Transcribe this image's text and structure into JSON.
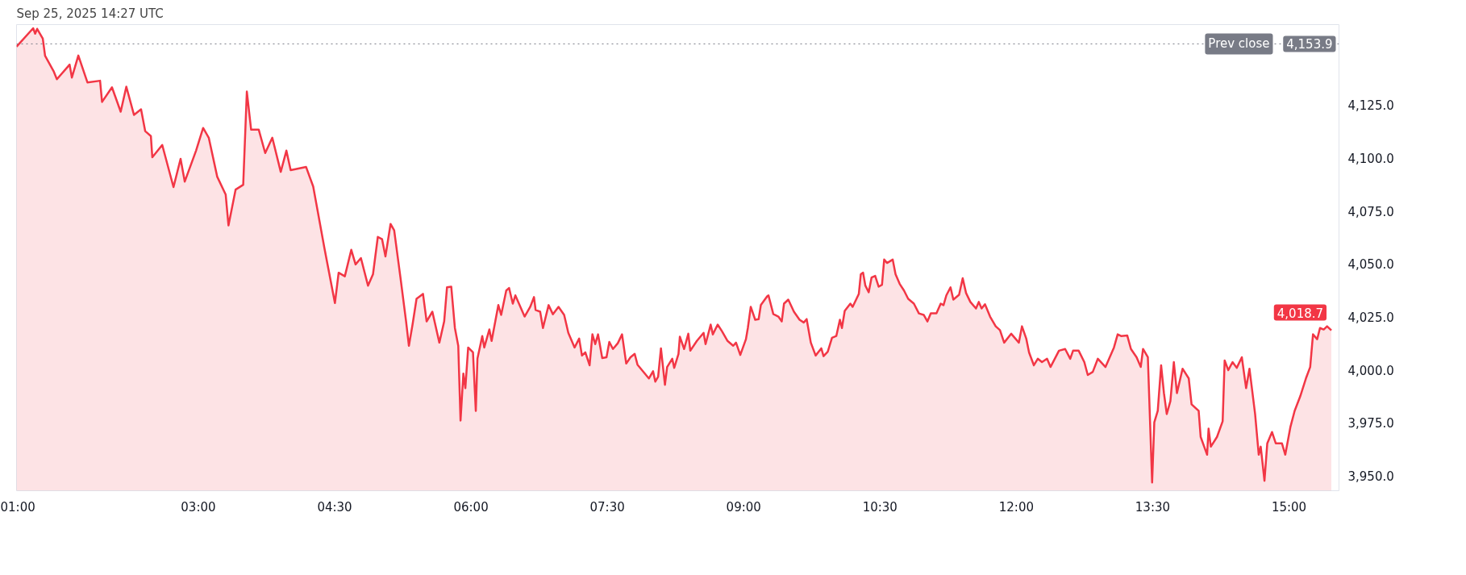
{
  "chart_data": {
    "type": "area",
    "title": "Sep 25, 2025 14:27 UTC",
    "x": [
      1.0,
      1.183,
      1.205,
      1.227,
      1.289,
      1.314,
      1.407,
      1.444,
      1.584,
      1.609,
      1.68,
      1.78,
      1.919,
      1.941,
      2.05,
      2.146,
      2.208,
      2.292,
      2.37,
      2.416,
      2.478,
      2.494,
      2.603,
      2.727,
      2.805,
      2.851,
      2.975,
      3.053,
      3.115,
      3.208,
      3.301,
      3.332,
      3.41,
      3.494,
      3.534,
      3.581,
      3.665,
      3.736,
      3.814,
      3.907,
      3.969,
      4.016,
      4.186,
      4.264,
      4.388,
      4.503,
      4.544,
      4.612,
      4.683,
      4.73,
      4.789,
      4.867,
      4.922,
      4.975,
      5.022,
      5.059,
      5.115,
      5.155,
      5.224,
      5.286,
      5.317,
      5.357,
      5.401,
      5.472,
      5.512,
      5.575,
      5.652,
      5.705,
      5.736,
      5.783,
      5.823,
      5.86,
      5.885,
      5.916,
      5.938,
      5.969,
      6.022,
      6.053,
      6.071,
      6.124,
      6.146,
      6.202,
      6.227,
      6.301,
      6.332,
      6.388,
      6.419,
      6.46,
      6.488,
      6.59,
      6.652,
      6.693,
      6.711,
      6.761,
      6.792,
      6.854,
      6.901,
      6.963,
      7.025,
      7.071,
      7.14,
      7.19,
      7.221,
      7.258,
      7.305,
      7.336,
      7.367,
      7.398,
      7.444,
      7.491,
      7.522,
      7.562,
      7.615,
      7.662,
      7.708,
      7.755,
      7.801,
      7.832,
      7.957,
      8.003,
      8.028,
      8.059,
      8.09,
      8.134,
      8.158,
      8.214,
      8.236,
      8.283,
      8.298,
      8.345,
      8.391,
      8.413,
      8.485,
      8.559,
      8.581,
      8.637,
      8.661,
      8.714,
      8.761,
      8.823,
      8.885,
      8.916,
      8.963,
      9.025,
      9.046,
      9.078,
      9.127,
      9.165,
      9.189,
      9.258,
      9.273,
      9.326,
      9.382,
      9.419,
      9.444,
      9.491,
      9.553,
      9.615,
      9.661,
      9.693,
      9.739,
      9.792,
      9.854,
      9.879,
      9.925,
      9.972,
      10.019,
      10.059,
      10.081,
      10.112,
      10.174,
      10.199,
      10.267,
      10.289,
      10.314,
      10.339,
      10.376,
      10.407,
      10.447,
      10.485,
      10.522,
      10.546,
      10.578,
      10.64,
      10.671,
      10.717,
      10.764,
      10.81,
      10.873,
      10.928,
      10.981,
      11.022,
      11.059,
      11.121,
      11.168,
      11.199,
      11.23,
      11.276,
      11.307,
      11.37,
      11.41,
      11.447,
      11.494,
      11.556,
      11.587,
      11.618,
      11.655,
      11.711,
      11.773,
      11.82,
      11.866,
      11.944,
      12.028,
      12.062,
      12.109,
      12.14,
      12.193,
      12.236,
      12.282,
      12.338,
      12.376,
      12.469,
      12.537,
      12.593,
      12.624,
      12.686,
      12.748,
      12.786,
      12.841,
      12.897,
      12.981,
      13.074,
      13.115,
      13.152,
      13.22,
      13.261,
      13.323,
      13.369,
      13.394,
      13.447,
      13.494,
      13.518,
      13.556,
      13.593,
      13.624,
      13.655,
      13.695,
      13.733,
      13.767,
      13.829,
      13.897,
      13.928,
      14.006,
      14.028,
      14.099,
      14.115,
      14.14,
      14.208,
      14.27,
      14.292,
      14.332,
      14.379,
      14.425,
      14.481,
      14.528,
      14.565,
      14.627,
      14.667,
      14.689,
      14.73,
      14.761,
      14.813,
      14.854,
      14.922,
      14.959,
      15.015,
      15.062,
      15.124,
      15.186,
      15.233,
      15.264,
      15.31,
      15.341,
      15.382,
      15.419,
      15.466
    ],
    "series": [
      {
        "color": "#f23645",
        "values": [
          4152.6,
          4161.3,
          4158.7,
          4161.0,
          4156.4,
          4148.3,
          4141.1,
          4137.2,
          4144.1,
          4138.0,
          4148.4,
          4135.7,
          4136.5,
          4126.5,
          4133.4,
          4121.9,
          4133.7,
          4120.4,
          4123.0,
          4112.7,
          4110.4,
          4100.4,
          4106.2,
          4086.3,
          4099.6,
          4088.9,
          4103.5,
          4114.2,
          4109.6,
          4091.2,
          4082.8,
          4068.2,
          4085.1,
          4087.4,
          4131.4,
          4113.4,
          4113.4,
          4102.4,
          4109.6,
          4093.5,
          4103.5,
          4094.3,
          4095.8,
          4086.6,
          4057.4,
          4031.6,
          4045.9,
          4044.2,
          4056.7,
          4049.8,
          4052.8,
          4039.8,
          4045.2,
          4062.8,
          4061.7,
          4053.6,
          4068.9,
          4065.9,
          4043.6,
          4022.9,
          4011.4,
          4021.4,
          4033.6,
          4035.9,
          4022.9,
          4027.5,
          4012.9,
          4022.9,
          4039.0,
          4039.3,
          4019.8,
          4011.4,
          3976.1,
          3998.3,
          3991.4,
          4010.6,
          4008.3,
          3980.7,
          4005.3,
          4016.0,
          4010.6,
          4019.1,
          4013.7,
          4030.6,
          4026.0,
          4037.5,
          4038.7,
          4031.3,
          4035.2,
          4025.2,
          4029.8,
          4034.4,
          4028.3,
          4027.5,
          4019.8,
          4030.6,
          4026.3,
          4029.8,
          4026.0,
          4017.5,
          4010.6,
          4014.8,
          4006.8,
          4008.3,
          4002.2,
          4016.8,
          4012.2,
          4016.8,
          4005.6,
          4006.0,
          4013.2,
          4009.9,
          4012.6,
          4016.8,
          4003.0,
          4006.0,
          4007.6,
          4002.5,
          3996.0,
          3999.4,
          3994.5,
          3996.8,
          4010.2,
          3993.0,
          4001.4,
          4005.3,
          4001.0,
          4007.6,
          4015.7,
          4009.9,
          4017.1,
          4009.1,
          4013.7,
          4017.5,
          4012.2,
          4021.4,
          4016.8,
          4021.4,
          4018.3,
          4013.7,
          4011.4,
          4012.9,
          4007.1,
          4014.5,
          4019.8,
          4029.8,
          4023.7,
          4024.0,
          4030.6,
          4034.7,
          4035.2,
          4026.4,
          4025.2,
          4022.9,
          4031.3,
          4033.2,
          4027.5,
          4023.7,
          4022.4,
          4024.0,
          4012.9,
          4006.8,
          4010.2,
          4006.5,
          4008.6,
          4015.2,
          4016.0,
          4023.7,
          4019.8,
          4027.9,
          4031.3,
          4029.8,
          4035.9,
          4045.2,
          4045.9,
          4039.8,
          4036.7,
          4043.6,
          4044.4,
          4039.3,
          4040.2,
          4052.1,
          4050.5,
          4052.1,
          4045.2,
          4040.6,
          4037.5,
          4033.6,
          4031.3,
          4026.7,
          4026.0,
          4022.9,
          4026.7,
          4026.7,
          4031.3,
          4030.6,
          4035.2,
          4039.0,
          4033.2,
          4035.5,
          4043.3,
          4036.3,
          4032.1,
          4029.0,
          4032.1,
          4029.0,
          4031.0,
          4025.2,
          4020.6,
          4018.8,
          4012.9,
          4017.1,
          4012.9,
          4020.6,
          4014.8,
          4008.3,
          4002.2,
          4005.3,
          4003.7,
          4005.3,
          4001.4,
          4009.1,
          4009.9,
          4005.3,
          4009.1,
          4009.1,
          4003.7,
          3997.6,
          3999.1,
          4005.3,
          4001.4,
          4010.6,
          4016.8,
          4016.0,
          4016.3,
          4009.9,
          4006.0,
          4001.4,
          4009.9,
          4006.0,
          3946.9,
          3975.3,
          3980.7,
          4002.2,
          3989.1,
          3979.2,
          3985.3,
          4003.7,
          3989.1,
          4000.6,
          3996.0,
          3983.8,
          3980.7,
          3968.4,
          3960.0,
          3972.3,
          3963.8,
          3968.4,
          3975.8,
          4004.5,
          3999.9,
          4003.7,
          4001.0,
          4006.0,
          3991.4,
          4000.6,
          3979.2,
          3960.0,
          3963.8,
          3947.7,
          3965.4,
          3970.7,
          3965.4,
          3965.4,
          3960.0,
          3973.0,
          3980.7,
          3987.6,
          3996.0,
          4001.4,
          4016.8,
          4014.5,
          4019.8,
          4019.1,
          4020.6,
          4018.7
        ]
      }
    ],
    "xlim": [
      1.0,
      15.55
    ],
    "ylim": [
      3943,
      4163
    ],
    "xticks": [
      {
        "value": 1,
        "label": "01:00"
      },
      {
        "value": 3,
        "label": "03:00"
      },
      {
        "value": 4.5,
        "label": "04:30"
      },
      {
        "value": 6,
        "label": "06:00"
      },
      {
        "value": 7.5,
        "label": "07:30"
      },
      {
        "value": 9,
        "label": "09:00"
      },
      {
        "value": 10.5,
        "label": "10:30"
      },
      {
        "value": 12,
        "label": "12:00"
      },
      {
        "value": 13.5,
        "label": "13:30"
      },
      {
        "value": 15,
        "label": "15:00"
      }
    ],
    "yticks": [
      {
        "value": 3950,
        "label": "3,950.0"
      },
      {
        "value": 3975,
        "label": "3,975.0"
      },
      {
        "value": 4000,
        "label": "4,000.0"
      },
      {
        "value": 4025,
        "label": "4,025.0"
      },
      {
        "value": 4050,
        "label": "4,050.0"
      },
      {
        "value": 4075,
        "label": "4,075.0"
      },
      {
        "value": 4100,
        "label": "4,100.0"
      },
      {
        "value": 4125,
        "label": "4,125.0"
      }
    ],
    "ref_lines": [
      {
        "axis": "y",
        "value": 4153.9,
        "label": "Prev close",
        "color": "#787b86",
        "line_style": "dotted"
      }
    ],
    "annotations": [
      {
        "text": "4,018.7",
        "x": 15.466,
        "y": 4018.7
      },
      {
        "text": "4,153.9",
        "y": 4153.9
      }
    ],
    "grid": false
  }
}
